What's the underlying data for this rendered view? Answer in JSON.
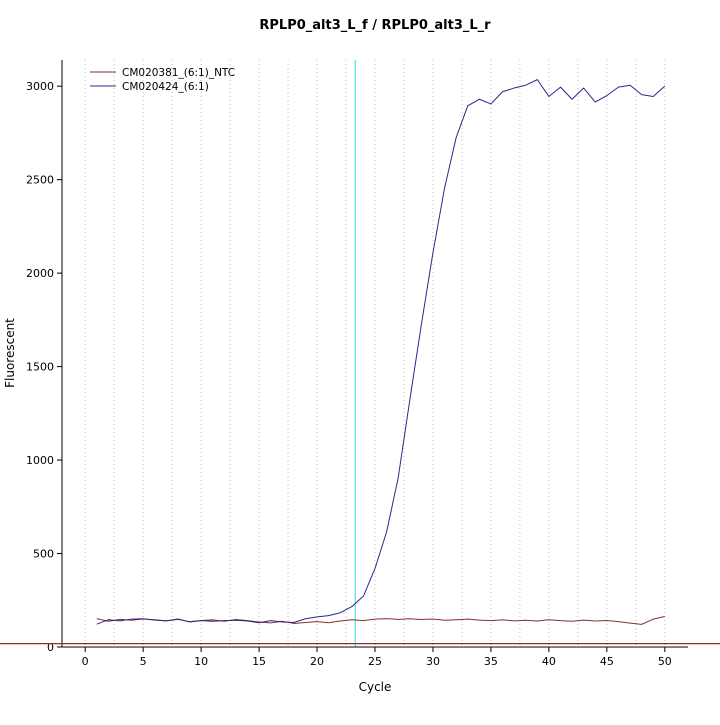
{
  "chart_data": {
    "type": "line",
    "title": "RPLP0_alt3_L_f / RPLP0_alt3_L_r",
    "xlabel": "Cycle",
    "ylabel": "Fluorescent",
    "x_ticks": [
      0,
      5,
      10,
      15,
      20,
      25,
      30,
      35,
      40,
      45,
      50
    ],
    "y_ticks": [
      0,
      500,
      1000,
      1500,
      2000,
      2500,
      3000
    ],
    "xlim": [
      -2,
      52
    ],
    "ylim": [
      0,
      3140
    ],
    "grid": {
      "x_from": 0,
      "x_to": 50,
      "x_step": 2.5,
      "color": "#bcbcbc"
    },
    "ct_line": {
      "x": 23.3,
      "color": "#5fe0ea"
    },
    "baseline": {
      "y": 18,
      "color": "#8b2e2e"
    },
    "legend_position": "top-left",
    "x": [
      1,
      2,
      3,
      4,
      5,
      6,
      7,
      8,
      9,
      10,
      11,
      12,
      13,
      14,
      15,
      16,
      17,
      18,
      19,
      20,
      21,
      22,
      23,
      24,
      25,
      26,
      27,
      28,
      29,
      30,
      31,
      32,
      33,
      34,
      35,
      36,
      37,
      38,
      39,
      40,
      41,
      42,
      43,
      44,
      45,
      46,
      47,
      48,
      49,
      50
    ],
    "series": [
      {
        "name": "CM020381_(6:1)_NTC",
        "color": "#8b2e2e",
        "values": [
          152,
          138,
          148,
          143,
          150,
          146,
          140,
          148,
          136,
          142,
          145,
          138,
          147,
          141,
          134,
          129,
          138,
          126,
          131,
          136,
          130,
          139,
          146,
          141,
          149,
          152,
          148,
          151,
          147,
          150,
          143,
          146,
          149,
          144,
          141,
          145,
          140,
          143,
          139,
          146,
          141,
          138,
          144,
          139,
          142,
          136,
          128,
          121,
          149,
          163
        ]
      },
      {
        "name": "CM020424_(6:1)",
        "color": "#28288c",
        "values": [
          122,
          146,
          140,
          149,
          151,
          144,
          140,
          150,
          134,
          141,
          138,
          141,
          143,
          139,
          130,
          141,
          134,
          131,
          151,
          161,
          168,
          183,
          216,
          272,
          420,
          615,
          905,
          1320,
          1725,
          2110,
          2455,
          2725,
          2895,
          2930,
          2905,
          2970,
          2990,
          3005,
          3035,
          2945,
          2995,
          2930,
          2990,
          2915,
          2950,
          2995,
          3005,
          2955,
          2945,
          3000
        ]
      }
    ]
  }
}
